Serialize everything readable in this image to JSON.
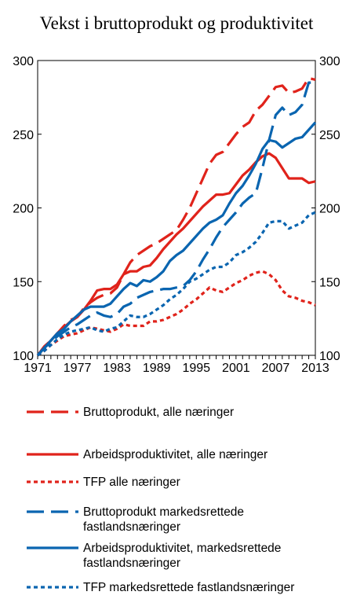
{
  "chart_data": {
    "type": "line",
    "title": "Vekst i bruttoprodukt og produktivitet",
    "xlabel": "",
    "ylabel": "",
    "ylim": [
      100,
      300
    ],
    "xlim": [
      1971,
      2013
    ],
    "yticks": [
      100,
      150,
      200,
      250,
      300
    ],
    "xticks": [
      1971,
      1977,
      1983,
      1989,
      1995,
      2001,
      2007,
      2013
    ],
    "right_axis_mirrors_left": true,
    "grid": false,
    "legend_position": "below",
    "x": [
      1971,
      1972,
      1973,
      1974,
      1975,
      1976,
      1977,
      1978,
      1979,
      1980,
      1981,
      1982,
      1983,
      1984,
      1985,
      1986,
      1987,
      1988,
      1989,
      1990,
      1991,
      1992,
      1993,
      1994,
      1995,
      1996,
      1997,
      1998,
      1999,
      2000,
      2001,
      2002,
      2003,
      2004,
      2005,
      2006,
      2007,
      2008,
      2009,
      2010,
      2011,
      2012,
      2013
    ],
    "series": [
      {
        "name": "Bruttoprodukt, alle næringer",
        "color": "#e0231b",
        "dash": "long",
        "values": [
          100,
          106,
          110,
          115,
          120,
          124,
          126,
          132,
          136,
          139,
          141,
          142,
          146,
          155,
          163,
          168,
          171,
          174,
          176,
          179,
          182,
          185,
          192,
          200,
          210,
          220,
          230,
          236,
          238,
          244,
          250,
          255,
          258,
          266,
          270,
          276,
          282,
          283,
          278,
          279,
          281,
          288,
          287
        ]
      },
      {
        "name": "Arbeidsproduktivitet, alle næringer",
        "color": "#e0231b",
        "dash": "solid",
        "values": [
          100,
          105,
          110,
          115,
          119,
          123,
          126,
          131,
          137,
          144,
          145,
          145,
          148,
          155,
          157,
          157,
          160,
          161,
          166,
          172,
          177,
          182,
          186,
          191,
          196,
          201,
          205,
          209,
          209,
          210,
          216,
          222,
          226,
          231,
          235,
          237,
          234,
          227,
          220,
          220,
          220,
          217,
          218
        ]
      },
      {
        "name": "TFP alle næringer",
        "color": "#e0231b",
        "dash": "short",
        "values": [
          100,
          103,
          107,
          110,
          113,
          114,
          115,
          117,
          119,
          118,
          117,
          116,
          118,
          121,
          120,
          120,
          120,
          123,
          123,
          124,
          126,
          128,
          131,
          135,
          138,
          142,
          146,
          144,
          143,
          146,
          149,
          151,
          154,
          156,
          157,
          155,
          151,
          144,
          140,
          139,
          137,
          136,
          134
        ]
      },
      {
        "name": "Bruttoprodukt markedsrettede fastlandsnæringer",
        "color": "#0a65b0",
        "dash": "long",
        "values": [
          100,
          105,
          109,
          113,
          116,
          119,
          121,
          124,
          127,
          129,
          127,
          126,
          128,
          133,
          135,
          139,
          141,
          143,
          144,
          145,
          145,
          146,
          147,
          151,
          157,
          165,
          172,
          180,
          187,
          192,
          197,
          203,
          207,
          210,
          227,
          246,
          263,
          268,
          263,
          265,
          270,
          285,
          285
        ]
      },
      {
        "name": "Arbeidsproduktivitet, markedsrettede fastlandsnæringer",
        "color": "#0a65b0",
        "dash": "solid",
        "values": [
          100,
          105,
          110,
          115,
          118,
          123,
          127,
          131,
          133,
          133,
          133,
          135,
          140,
          145,
          149,
          147,
          151,
          150,
          153,
          157,
          164,
          168,
          171,
          176,
          181,
          186,
          190,
          192,
          195,
          203,
          210,
          215,
          222,
          230,
          240,
          246,
          245,
          241,
          244,
          247,
          248,
          253,
          258
        ]
      },
      {
        "name": "TFP markedsrettede fastlandsnæringer",
        "color": "#0a65b0",
        "dash": "short",
        "values": [
          100,
          103,
          107,
          111,
          114,
          116,
          117,
          118,
          119,
          117,
          116,
          118,
          119,
          123,
          127,
          126,
          126,
          128,
          131,
          134,
          138,
          141,
          145,
          150,
          152,
          155,
          158,
          160,
          160,
          163,
          168,
          170,
          173,
          177,
          183,
          190,
          191,
          191,
          186,
          188,
          190,
          195,
          197
        ]
      }
    ]
  }
}
